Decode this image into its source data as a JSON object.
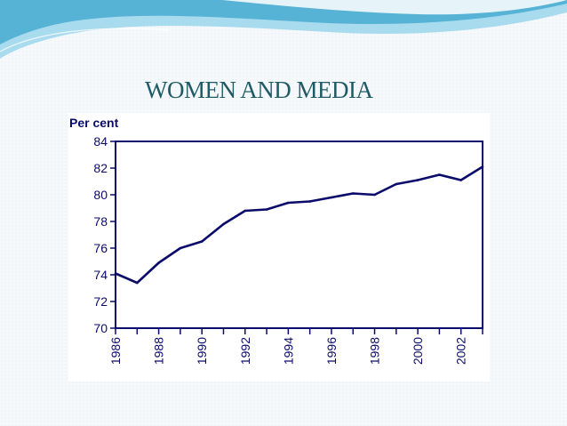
{
  "slide": {
    "title": "WOMEN AND MEDIA"
  },
  "colors": {
    "title": "#1f5b66",
    "line": "#0b0b6b",
    "axis": "#0b0b6b",
    "wave_dark": "#56b3d6",
    "wave_light": "#a9dbef"
  },
  "chart_data": {
    "type": "line",
    "title": "",
    "xlabel": "",
    "ylabel": "Per cent",
    "xlim": [
      1986,
      2003
    ],
    "ylim": [
      70,
      84
    ],
    "yticks": [
      70,
      72,
      74,
      76,
      78,
      80,
      82,
      84
    ],
    "xticks": [
      1986,
      1988,
      1990,
      1992,
      1994,
      1996,
      1998,
      2000,
      2002
    ],
    "grid": false,
    "x": [
      1986,
      1987,
      1988,
      1989,
      1990,
      1991,
      1992,
      1993,
      1994,
      1995,
      1996,
      1997,
      1998,
      1999,
      2000,
      2001,
      2002,
      2003
    ],
    "values": [
      74.1,
      73.4,
      74.9,
      76.0,
      76.5,
      77.8,
      78.8,
      78.9,
      79.4,
      79.5,
      79.8,
      80.1,
      80.0,
      80.8,
      81.1,
      81.5,
      81.1,
      82.1
    ]
  }
}
